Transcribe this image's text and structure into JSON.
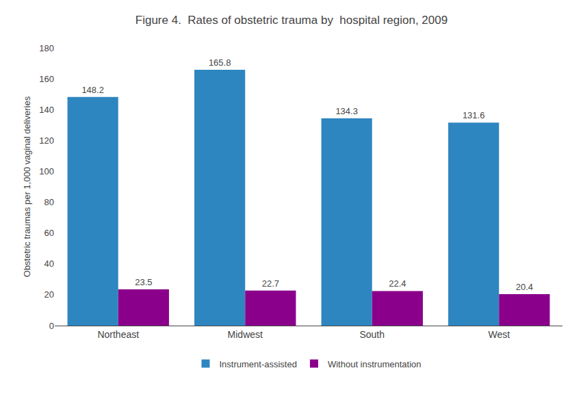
{
  "chart_data": {
    "type": "bar",
    "title": "Figure 4.  Rates of obstetric trauma by  hospital region, 2009",
    "ylabel": "Obstetric traumas per 1,000 vaginal deliveries",
    "categories": [
      "Northeast",
      "Midwest",
      "South",
      "West"
    ],
    "series": [
      {
        "name": "Instrument-assisted",
        "color": "#2E86C1",
        "values": [
          148.2,
          165.8,
          134.3,
          131.6
        ]
      },
      {
        "name": "Without instrumentation",
        "color": "#8B008B",
        "values": [
          23.5,
          22.7,
          22.4,
          20.4
        ]
      }
    ],
    "ylim": [
      0,
      180
    ],
    "yticks": [
      0,
      20,
      40,
      60,
      80,
      100,
      120,
      140,
      160,
      180
    ],
    "grid": false,
    "legend": "bottom",
    "data_labels": true
  }
}
